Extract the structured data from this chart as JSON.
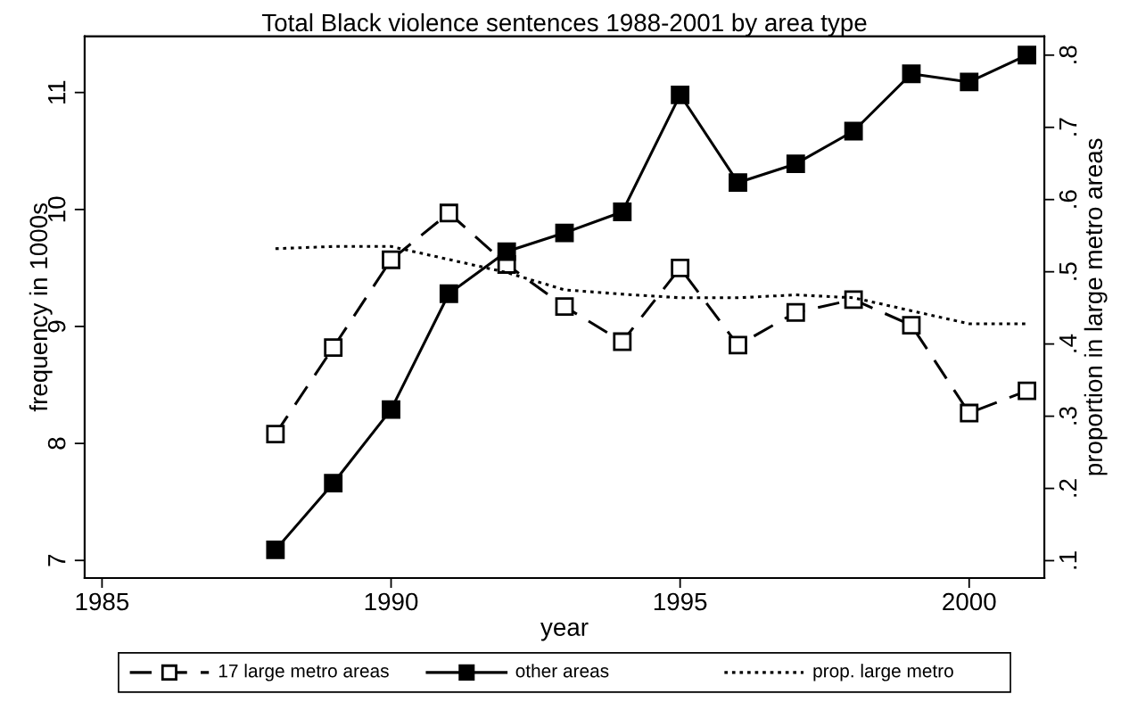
{
  "chart_data": {
    "type": "line",
    "title": "Total Black violence sentences 1988-2001 by area type",
    "xlabel": "year",
    "ylabel": "frequency in 1000s",
    "y2label": "proportion in large metro areas",
    "x": [
      1988,
      1989,
      1990,
      1991,
      1992,
      1993,
      1994,
      1995,
      1996,
      1997,
      1998,
      1999,
      2000,
      2001
    ],
    "series": [
      {
        "name": "17 large metro areas",
        "color": "#000000",
        "marker": "square_open",
        "line_style": "dashed",
        "values": [
          8.08,
          8.82,
          9.57,
          9.97,
          9.53,
          9.17,
          8.87,
          9.5,
          8.84,
          9.12,
          9.23,
          9.01,
          8.26,
          8.45
        ]
      },
      {
        "name": "other areas",
        "color": "#000000",
        "marker": "square",
        "line_style": "solid",
        "values": [
          7.09,
          7.66,
          8.29,
          9.28,
          9.64,
          9.8,
          9.98,
          10.98,
          10.23,
          10.39,
          10.67,
          11.16,
          11.09,
          11.32
        ]
      },
      {
        "name": "prop. large metro",
        "color": "#000000",
        "marker": "none",
        "line_style": "dotted",
        "axis": "y2",
        "values": [
          0.532,
          0.535,
          0.535,
          0.517,
          0.499,
          0.475,
          0.469,
          0.464,
          0.464,
          0.468,
          0.464,
          0.446,
          0.428,
          0.428
        ]
      }
    ],
    "xlim": [
      1984.7,
      2001.3
    ],
    "xticks": [
      1985,
      1990,
      1995,
      2000
    ],
    "ylim": [
      6.85,
      11.48
    ],
    "yticks": [
      7,
      8,
      9,
      10,
      11
    ],
    "y2lim": [
      0.076,
      0.826
    ],
    "y2ticks": [
      {
        "value": 0.1,
        "label": ".1"
      },
      {
        "value": 0.2,
        "label": ".2"
      },
      {
        "value": 0.3,
        "label": ".3"
      },
      {
        "value": 0.4,
        "label": ".4"
      },
      {
        "value": 0.5,
        "label": ".5"
      },
      {
        "value": 0.6,
        "label": ".6"
      },
      {
        "value": 0.7,
        "label": ".7"
      },
      {
        "value": 0.8,
        "label": ".8"
      }
    ],
    "grid": false,
    "legend": "bottom"
  }
}
